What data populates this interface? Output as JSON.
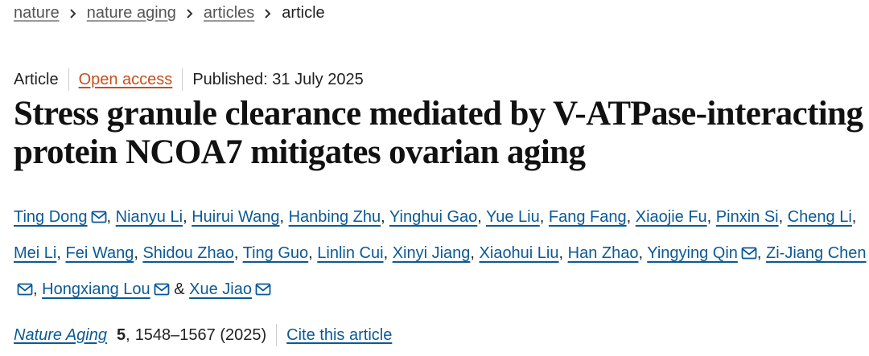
{
  "breadcrumbs": [
    "nature",
    "nature aging",
    "articles",
    "article"
  ],
  "article_type": "Article",
  "access": "Open access",
  "published": "Published: 31 July 2025",
  "title": "Stress granule clearance mediated by V-ATPase-interacting protein NCOA7 mitigates ovarian aging",
  "authors": [
    {
      "name": "Ting Dong",
      "email": true
    },
    {
      "name": "Nianyu Li",
      "email": false
    },
    {
      "name": "Huirui Wang",
      "email": false
    },
    {
      "name": "Hanbing Zhu",
      "email": false
    },
    {
      "name": "Yinghui Gao",
      "email": false
    },
    {
      "name": "Yue Liu",
      "email": false
    },
    {
      "name": "Fang Fang",
      "email": false
    },
    {
      "name": "Xiaojie Fu",
      "email": false
    },
    {
      "name": "Pinxin Si",
      "email": false
    },
    {
      "name": "Cheng Li",
      "email": false
    },
    {
      "name": "Mei Li",
      "email": false
    },
    {
      "name": "Fei Wang",
      "email": false
    },
    {
      "name": "Shidou Zhao",
      "email": false
    },
    {
      "name": "Ting Guo",
      "email": false
    },
    {
      "name": "Linlin Cui",
      "email": false
    },
    {
      "name": "Xinyi Jiang",
      "email": false
    },
    {
      "name": "Xiaohui Liu",
      "email": false
    },
    {
      "name": "Han Zhao",
      "email": false
    },
    {
      "name": "Yingying Qin",
      "email": true
    },
    {
      "name": "Zi-Jiang Chen",
      "email": true
    },
    {
      "name": "Hongxiang Lou",
      "email": true
    },
    {
      "name": "Xue Jiao",
      "email": true
    }
  ],
  "separator": ",",
  "conjunction": "&",
  "citation": {
    "journal": "Nature Aging",
    "volume": "5",
    "details": "1548–1567 (2025)",
    "cite_link": "Cite this article"
  }
}
